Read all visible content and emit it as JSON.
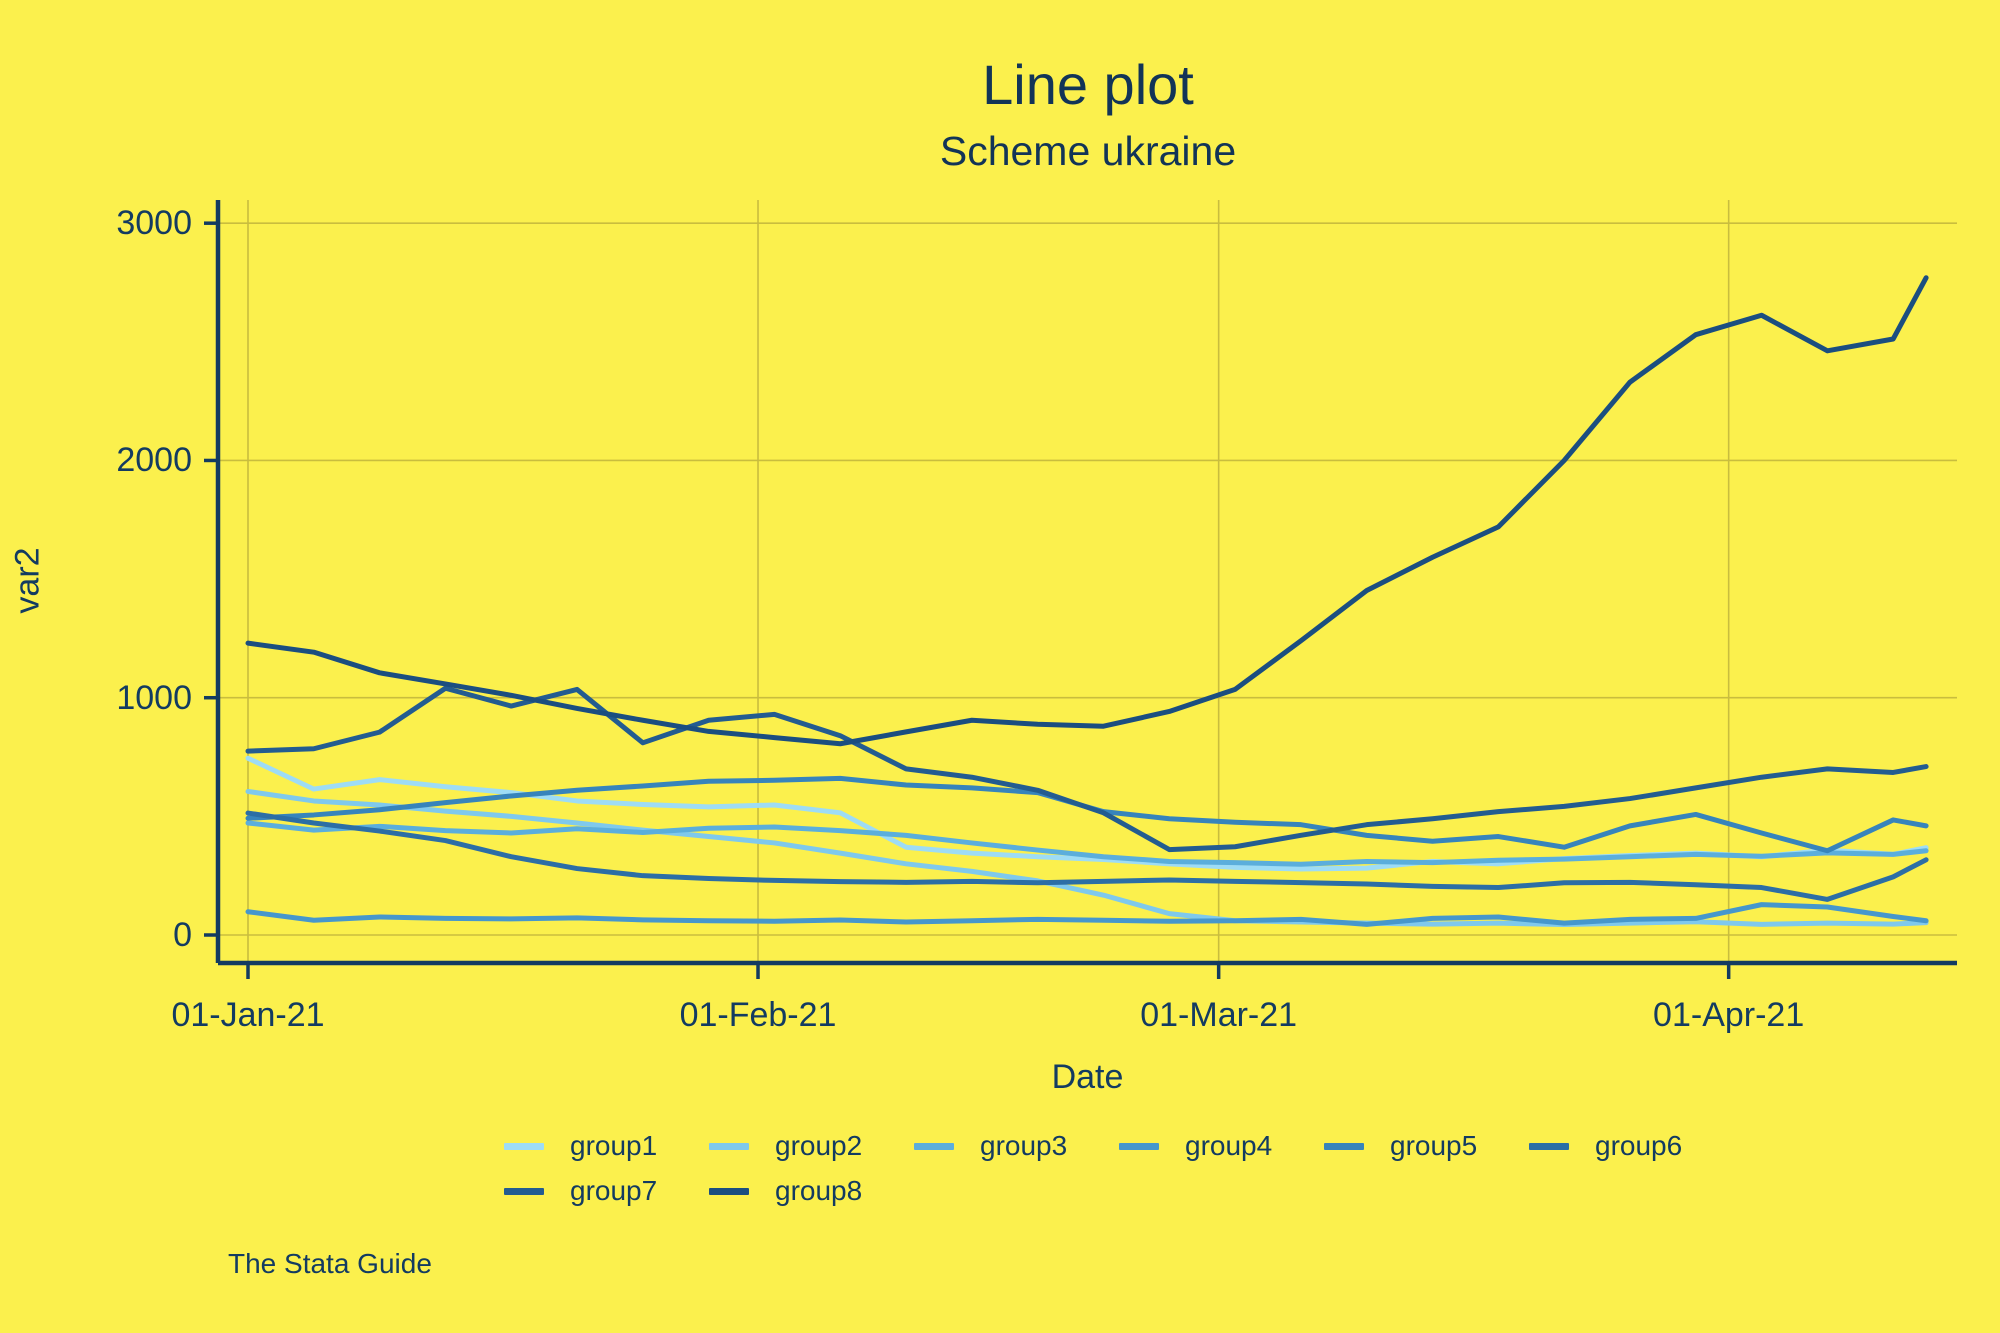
{
  "title": "Line plot",
  "subtitle": "Scheme ukraine",
  "caption": "The Stata Guide",
  "colors": {
    "background": "#FBF04D",
    "text": "#133B61",
    "axis": "#133B61",
    "grid": "#C9BD3E"
  },
  "chart_data": {
    "type": "line",
    "title": "Line plot",
    "subtitle": "Scheme ukraine",
    "xlabel": "Date",
    "ylabel": "var2",
    "grid": true,
    "legend_position": "bottom",
    "x_unit": "days since 01-Jan-21",
    "x": [
      0,
      4,
      8,
      12,
      16,
      20,
      24,
      28,
      32,
      36,
      40,
      44,
      48,
      52,
      56,
      60,
      64,
      68,
      72,
      76,
      80,
      84,
      88,
      92,
      96,
      100,
      102
    ],
    "x_ticks": [
      {
        "label": "01-Jan-21",
        "day": 0
      },
      {
        "label": "01-Feb-21",
        "day": 31
      },
      {
        "label": "01-Mar-21",
        "day": 59
      },
      {
        "label": "01-Apr-21",
        "day": 90
      }
    ],
    "xlim": [
      0,
      104
    ],
    "y_ticks": [
      0,
      1000,
      2000,
      3000
    ],
    "ylim": [
      -120,
      3100
    ],
    "series": [
      {
        "name": "group1",
        "color": "#9EDCF5",
        "values": [
          745,
          615,
          655,
          625,
          600,
          565,
          550,
          540,
          548,
          515,
          370,
          345,
          330,
          318,
          300,
          285,
          278,
          282,
          310,
          300,
          322,
          335,
          345,
          330,
          358,
          340,
          368
        ]
      },
      {
        "name": "group2",
        "color": "#7FC9EC",
        "values": [
          605,
          565,
          548,
          522,
          500,
          472,
          442,
          415,
          388,
          345,
          300,
          268,
          228,
          168,
          90,
          60,
          55,
          50,
          46,
          50,
          44,
          50,
          56,
          45,
          50,
          46,
          52
        ]
      },
      {
        "name": "group3",
        "color": "#5BAEDC",
        "values": [
          472,
          442,
          458,
          440,
          430,
          448,
          432,
          450,
          455,
          440,
          420,
          388,
          358,
          330,
          310,
          305,
          298,
          310,
          305,
          315,
          320,
          330,
          340,
          332,
          346,
          340,
          355
        ]
      },
      {
        "name": "group4",
        "color": "#4697CC",
        "values": [
          98,
          62,
          76,
          70,
          68,
          72,
          64,
          60,
          58,
          63,
          55,
          60,
          66,
          62,
          58,
          60,
          66,
          45,
          70,
          76,
          50,
          66,
          70,
          128,
          118,
          78,
          60
        ]
      },
      {
        "name": "group5",
        "color": "#3784BB",
        "values": [
          492,
          506,
          528,
          558,
          586,
          610,
          628,
          648,
          652,
          660,
          632,
          620,
          600,
          520,
          490,
          475,
          465,
          420,
          395,
          415,
          370,
          460,
          508,
          430,
          355,
          485,
          460
        ]
      },
      {
        "name": "group6",
        "color": "#2C6EA5",
        "values": [
          514,
          472,
          438,
          398,
          330,
          280,
          250,
          238,
          230,
          225,
          222,
          226,
          220,
          226,
          232,
          226,
          221,
          215,
          205,
          200,
          220,
          222,
          212,
          200,
          150,
          245,
          317
        ]
      },
      {
        "name": "group7",
        "color": "#235C90",
        "values": [
          775,
          785,
          855,
          1040,
          965,
          1035,
          810,
          905,
          930,
          840,
          700,
          665,
          610,
          515,
          360,
          372,
          420,
          465,
          490,
          520,
          542,
          575,
          620,
          665,
          700,
          685,
          710
        ]
      },
      {
        "name": "group8",
        "color": "#1B4E80",
        "values": [
          1230,
          1192,
          1105,
          1058,
          1010,
          955,
          905,
          858,
          832,
          806,
          856,
          905,
          888,
          880,
          942,
          1035,
          1240,
          1452,
          1592,
          1720,
          2000,
          2330,
          2530,
          2612,
          2462,
          2512,
          2770
        ]
      }
    ]
  }
}
